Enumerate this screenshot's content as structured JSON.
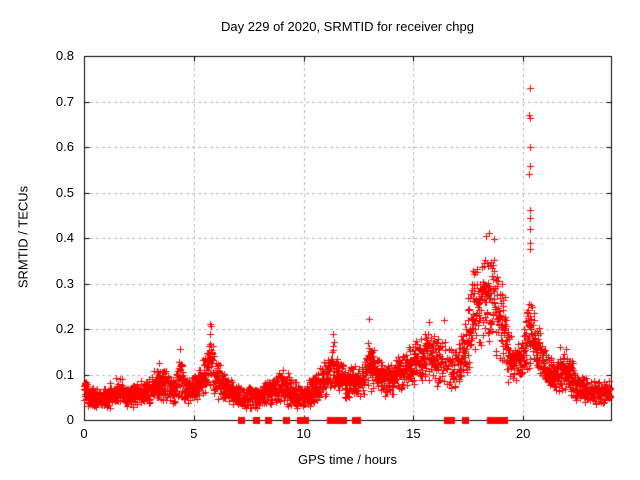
{
  "chart_data": {
    "type": "scatter",
    "title": "Day 229 of 2020, SRMTID for receiver chpg",
    "xlabel": "GPS time / hours",
    "ylabel": "SRMTID / TECUs",
    "xlim": [
      0,
      24
    ],
    "ylim": [
      0,
      0.8
    ],
    "xticks": [
      0,
      5,
      10,
      15,
      20
    ],
    "xtick_labels": [
      "0",
      "5",
      "10",
      "15",
      "20"
    ],
    "yticks": [
      0,
      0.1,
      0.2,
      0.3,
      0.4,
      0.5,
      0.6,
      0.7,
      0.8
    ],
    "ytick_labels": [
      "0",
      "0.1",
      "0.2",
      "0.3",
      "0.4",
      "0.5",
      "0.6",
      "0.7",
      "0.8"
    ],
    "grid": true,
    "legend": "none",
    "marker": "plus",
    "marker_color": "#ff0000",
    "grid_color": "#b9b9b9",
    "border_color": "#000000",
    "background_color": "#ffffff",
    "point_interval_hours": 0.008333,
    "band_envelope_t_lo_hi": [
      [
        0.0,
        0.03,
        0.1
      ],
      [
        0.3,
        0.025,
        0.08
      ],
      [
        0.8,
        0.02,
        0.07
      ],
      [
        1.2,
        0.025,
        0.085
      ],
      [
        1.6,
        0.03,
        0.1
      ],
      [
        2.0,
        0.025,
        0.08
      ],
      [
        2.5,
        0.03,
        0.09
      ],
      [
        3.0,
        0.035,
        0.1
      ],
      [
        3.4,
        0.04,
        0.12
      ],
      [
        3.8,
        0.035,
        0.11
      ],
      [
        4.1,
        0.03,
        0.09
      ],
      [
        4.36,
        0.05,
        0.155
      ],
      [
        4.6,
        0.03,
        0.09
      ],
      [
        5.0,
        0.035,
        0.1
      ],
      [
        5.4,
        0.05,
        0.13
      ],
      [
        5.75,
        0.06,
        0.21
      ],
      [
        6.0,
        0.04,
        0.14
      ],
      [
        6.3,
        0.04,
        0.12
      ],
      [
        6.7,
        0.03,
        0.09
      ],
      [
        7.2,
        0.02,
        0.08
      ],
      [
        7.7,
        0.02,
        0.075
      ],
      [
        8.2,
        0.025,
        0.09
      ],
      [
        8.7,
        0.03,
        0.11
      ],
      [
        9.1,
        0.03,
        0.12
      ],
      [
        9.5,
        0.025,
        0.09
      ],
      [
        10.0,
        0.02,
        0.08
      ],
      [
        10.4,
        0.03,
        0.1
      ],
      [
        10.8,
        0.05,
        0.13
      ],
      [
        11.1,
        0.05,
        0.14
      ],
      [
        11.32,
        0.06,
        0.185
      ],
      [
        11.6,
        0.05,
        0.14
      ],
      [
        11.9,
        0.04,
        0.12
      ],
      [
        12.2,
        0.05,
        0.13
      ],
      [
        12.6,
        0.04,
        0.115
      ],
      [
        13.0,
        0.06,
        0.19
      ],
      [
        13.35,
        0.06,
        0.15
      ],
      [
        13.7,
        0.05,
        0.13
      ],
      [
        14.1,
        0.05,
        0.14
      ],
      [
        14.5,
        0.06,
        0.15
      ],
      [
        14.9,
        0.07,
        0.17
      ],
      [
        15.3,
        0.08,
        0.19
      ],
      [
        15.7,
        0.08,
        0.21
      ],
      [
        16.1,
        0.07,
        0.19
      ],
      [
        16.45,
        0.05,
        0.19
      ],
      [
        16.8,
        0.05,
        0.16
      ],
      [
        17.1,
        0.07,
        0.18
      ],
      [
        17.4,
        0.09,
        0.25
      ],
      [
        17.7,
        0.12,
        0.33
      ],
      [
        18.0,
        0.14,
        0.37
      ],
      [
        18.3,
        0.15,
        0.4
      ],
      [
        18.6,
        0.15,
        0.385
      ],
      [
        18.9,
        0.12,
        0.33
      ],
      [
        19.1,
        0.1,
        0.28
      ],
      [
        19.35,
        0.08,
        0.2
      ],
      [
        19.65,
        0.08,
        0.17
      ],
      [
        19.95,
        0.09,
        0.18
      ],
      [
        20.3,
        0.1,
        0.33
      ],
      [
        20.55,
        0.11,
        0.23
      ],
      [
        20.85,
        0.08,
        0.18
      ],
      [
        21.15,
        0.06,
        0.15
      ],
      [
        21.5,
        0.05,
        0.13
      ],
      [
        21.8,
        0.055,
        0.155
      ],
      [
        22.1,
        0.05,
        0.15
      ],
      [
        22.45,
        0.04,
        0.11
      ],
      [
        22.8,
        0.035,
        0.1
      ],
      [
        23.2,
        0.03,
        0.09
      ],
      [
        23.6,
        0.03,
        0.085
      ],
      [
        23.95,
        0.035,
        0.095
      ]
    ],
    "outlier_points_t_v": [
      [
        20.3,
        0.73
      ],
      [
        20.28,
        0.67
      ],
      [
        20.31,
        0.664
      ],
      [
        20.3,
        0.601
      ],
      [
        20.32,
        0.558
      ],
      [
        20.28,
        0.54
      ],
      [
        20.32,
        0.462
      ],
      [
        20.29,
        0.444
      ],
      [
        20.3,
        0.42
      ],
      [
        20.31,
        0.39
      ],
      [
        20.29,
        0.376
      ],
      [
        18.45,
        0.41
      ],
      [
        18.32,
        0.404
      ],
      [
        18.68,
        0.398
      ],
      [
        19.05,
        0.3
      ],
      [
        19.15,
        0.27
      ],
      [
        16.4,
        0.22
      ],
      [
        15.7,
        0.215
      ],
      [
        13.0,
        0.222
      ],
      [
        11.32,
        0.19
      ],
      [
        5.75,
        0.212
      ],
      [
        5.78,
        0.206
      ],
      [
        4.36,
        0.157
      ],
      [
        3.4,
        0.125
      ],
      [
        21.7,
        0.16
      ],
      [
        21.95,
        0.155
      ]
    ],
    "zero_gap_markers_t": [
      7.17,
      7.85,
      8.38,
      9.21,
      9.85,
      9.95,
      10.08,
      11.2,
      11.28,
      11.55,
      11.78,
      12.32,
      12.44,
      16.52,
      16.7,
      17.35,
      18.49,
      18.67,
      18.8,
      19.13
    ],
    "sparse_intervals": [
      {
        "from": 16.25,
        "to": 17.05,
        "drop": 0.45
      },
      {
        "from": 7.0,
        "to": 8.2,
        "drop": 0.2
      }
    ]
  }
}
